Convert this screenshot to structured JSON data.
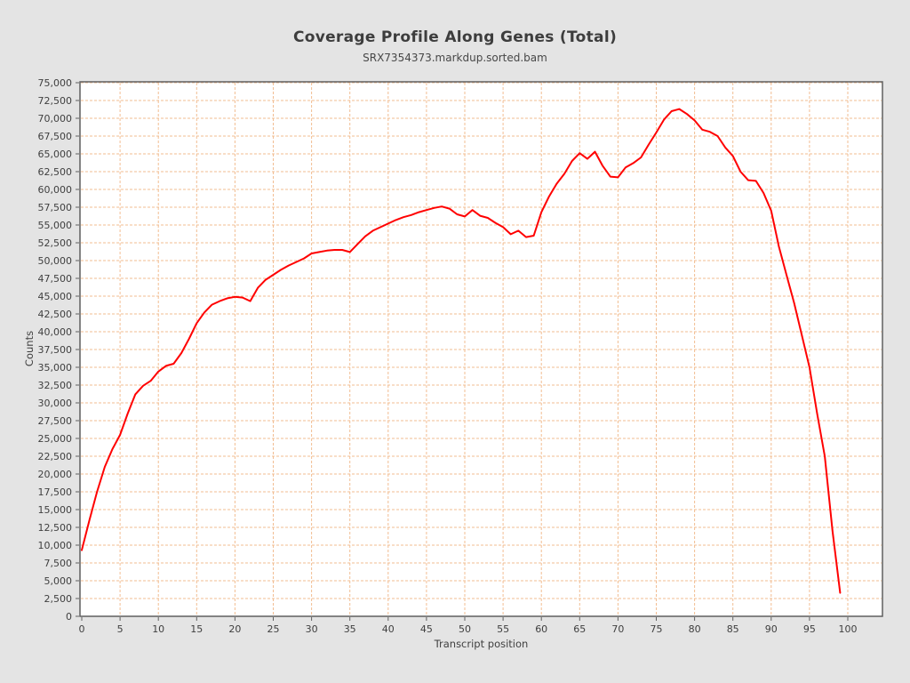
{
  "page": {
    "background_color": "#e4e4e4",
    "plot_background_color": "#ffffff",
    "plot_border_color": "#5f5f5f"
  },
  "chart_data": {
    "type": "line",
    "title": "Coverage Profile Along Genes (Total)",
    "subtitle": "SRX7354373.markdup.sorted.bam",
    "xlabel": "Transcript position",
    "ylabel": "Counts",
    "xlim": [
      0,
      104.5
    ],
    "ylim": [
      0,
      75000
    ],
    "x_ticks": [
      0,
      5,
      10,
      15,
      20,
      25,
      30,
      35,
      40,
      45,
      50,
      55,
      60,
      65,
      70,
      75,
      80,
      85,
      90,
      95,
      100
    ],
    "y_ticks": [
      0,
      2500,
      5000,
      7500,
      10000,
      12500,
      15000,
      17500,
      20000,
      22500,
      25000,
      27500,
      30000,
      32500,
      35000,
      37500,
      40000,
      42500,
      45000,
      47500,
      50000,
      52500,
      55000,
      57500,
      60000,
      62500,
      65000,
      67500,
      70000,
      72500,
      75000
    ],
    "grid": true,
    "grid_color": "#f2bd92",
    "legend_position": "none",
    "line_color": "#ff0000",
    "line_width": 2,
    "x": [
      0,
      1,
      2,
      3,
      4,
      5,
      6,
      7,
      8,
      9,
      10,
      11,
      12,
      13,
      14,
      15,
      16,
      17,
      18,
      19,
      20,
      21,
      22,
      23,
      24,
      25,
      26,
      27,
      28,
      29,
      30,
      31,
      32,
      33,
      34,
      35,
      36,
      37,
      38,
      39,
      40,
      41,
      42,
      43,
      44,
      45,
      46,
      47,
      48,
      49,
      50,
      51,
      52,
      53,
      54,
      55,
      56,
      57,
      58,
      59,
      60,
      61,
      62,
      63,
      64,
      65,
      66,
      67,
      68,
      69,
      70,
      71,
      72,
      73,
      74,
      75,
      76,
      77,
      78,
      79,
      80,
      81,
      82,
      83,
      84,
      85,
      86,
      87,
      88,
      89,
      90,
      91,
      92,
      93,
      94,
      95,
      96,
      97,
      98,
      99
    ],
    "series": [
      {
        "name": "Total",
        "values": [
          9300,
          13500,
          17500,
          21000,
          23500,
          25500,
          28500,
          31200,
          32400,
          33100,
          34400,
          35200,
          35500,
          37000,
          39000,
          41200,
          42700,
          43800,
          44300,
          44700,
          44900,
          44800,
          44300,
          46200,
          47300,
          48000,
          48700,
          49300,
          49800,
          50300,
          51000,
          51200,
          51400,
          51500,
          51500,
          51200,
          52300,
          53400,
          54200,
          54700,
          55200,
          55700,
          56100,
          56400,
          56800,
          57100,
          57400,
          57600,
          57300,
          56500,
          56200,
          57100,
          56300,
          56000,
          55300,
          54700,
          53700,
          54200,
          53300,
          53500,
          56800,
          59000,
          60800,
          62200,
          64000,
          65100,
          64300,
          65300,
          63300,
          61800,
          61700,
          63100,
          63700,
          64500,
          66300,
          68000,
          69800,
          71000,
          71300,
          70600,
          69700,
          68400,
          68100,
          67500,
          65900,
          64700,
          62500,
          61300,
          61200,
          59500,
          57000,
          52000,
          48000,
          44000,
          39500,
          35000,
          28500,
          22500,
          12000,
          3300
        ]
      }
    ]
  }
}
